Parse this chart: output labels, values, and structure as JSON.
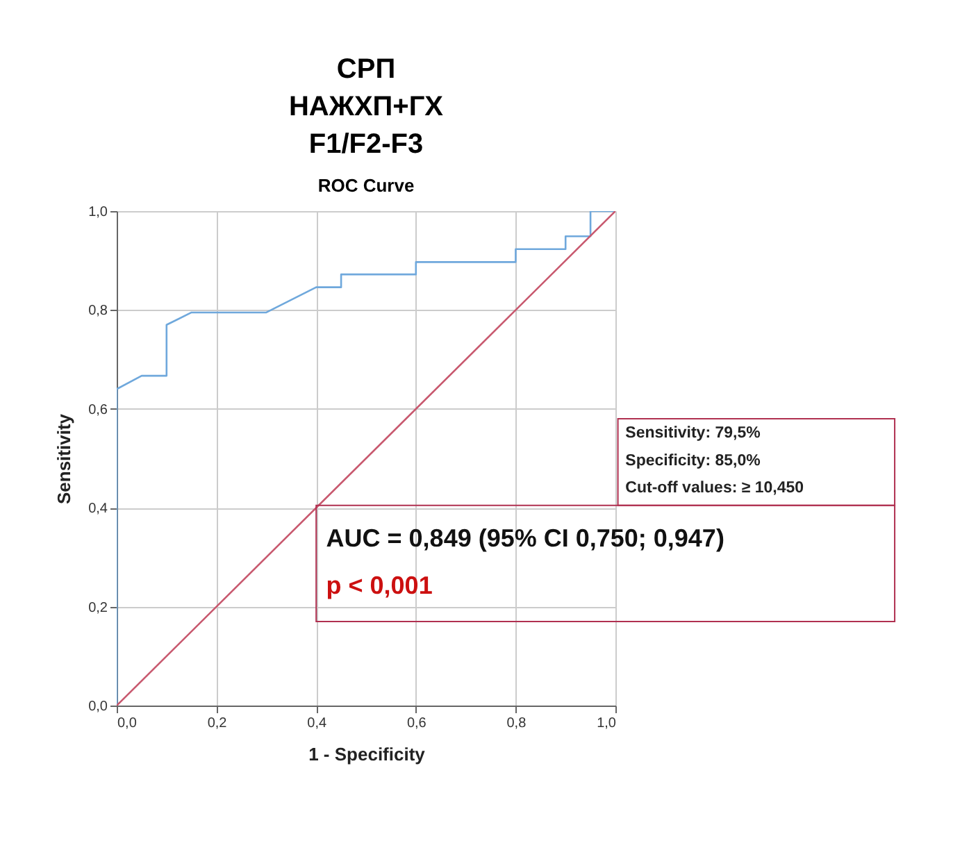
{
  "chart_data": {
    "type": "line",
    "title": "СРП\nНАЖХП+ГХ\nF1/F2-F3",
    "subtitle": "ROC Curve",
    "xlabel": "1 - Specificity",
    "ylabel": "Sensitivity",
    "series": [
      {
        "color": "#6fa8dc",
        "x": [
          0,
          0,
          0.05,
          0.1,
          0.1,
          0.15,
          0.3,
          0.4,
          0.45,
          0.45,
          0.6,
          0.6,
          0.8,
          0.8,
          0.9,
          0.9,
          0.95,
          0.95,
          1.0
        ],
        "values": [
          0,
          0.64,
          0.667,
          0.667,
          0.77,
          0.795,
          0.795,
          0.846,
          0.846,
          0.872,
          0.872,
          0.897,
          0.897,
          0.923,
          0.923,
          0.949,
          0.949,
          1.0,
          1.0
        ]
      },
      {
        "color": "#c8586e",
        "x": [
          0,
          1
        ],
        "values": [
          0,
          1
        ]
      }
    ],
    "xlim": [
      0,
      1
    ],
    "ylim": [
      0,
      1
    ],
    "xticks": [
      {
        "value": 0,
        "label": "0,0"
      },
      {
        "value": 0.2,
        "label": "0,2"
      },
      {
        "value": 0.4,
        "label": "0,4"
      },
      {
        "value": 0.6,
        "label": "0,6"
      },
      {
        "value": 0.8,
        "label": "0,8"
      },
      {
        "value": 1,
        "label": "1,0"
      }
    ],
    "yticks": [
      {
        "value": 0,
        "label": "0,0"
      },
      {
        "value": 0.2,
        "label": "0,2"
      },
      {
        "value": 0.4,
        "label": "0,4"
      },
      {
        "value": 0.6,
        "label": "0,6"
      },
      {
        "value": 0.8,
        "label": "0,8"
      },
      {
        "value": 1,
        "label": "1,0"
      }
    ],
    "grid": true,
    "marker": "none",
    "line_style": "solid",
    "annotations": [
      "Sensitivity: 79,5%",
      "Specificity: 85,0%",
      "Cut-off values: ≥ 10,450",
      "AUC = 0,849 (95% CI 0,750; 0,947)",
      "p < 0,001"
    ]
  }
}
